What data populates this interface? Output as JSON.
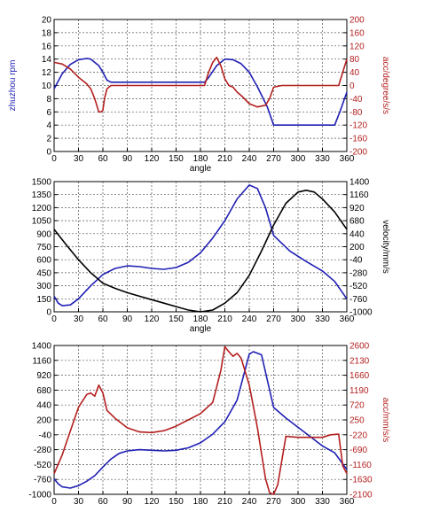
{
  "colors": {
    "blue": "#1f1fb4",
    "red": "#b41f1f",
    "black": "#000000",
    "axis": "#000000",
    "grid": "#555555"
  },
  "chart_data": [
    {
      "type": "line",
      "xlabel": "angle",
      "ylabel": "zhuzhou rpm",
      "ylabel_right": "acc/degree/s/s",
      "xlim": [
        0,
        360
      ],
      "ylim": [
        0,
        20
      ],
      "ylim_right": [
        -200,
        200
      ],
      "xticks": [
        "0",
        "30",
        "60",
        "90",
        "120",
        "150",
        "180",
        "210",
        "240",
        "270",
        "300",
        "330",
        "360"
      ],
      "yticks": [
        "0",
        "2",
        "4",
        "6",
        "8",
        "10",
        "12",
        "14",
        "16",
        "18",
        "20"
      ],
      "yticks_right": [
        "-200",
        "-160",
        "-120",
        "-80",
        "-40",
        "0",
        "40",
        "80",
        "120",
        "160",
        "200"
      ],
      "grid": true,
      "series": [
        {
          "color": "blue",
          "axis": "left",
          "x": [
            0,
            10,
            20,
            30,
            40,
            45,
            55,
            60,
            65,
            70,
            180,
            185,
            190,
            200,
            210,
            220,
            230,
            240,
            250,
            262,
            270,
            285,
            300,
            330,
            345,
            352,
            360
          ],
          "y": [
            9.5,
            11.8,
            13.2,
            13.9,
            14.1,
            14.0,
            13.0,
            12.0,
            10.8,
            10.5,
            10.5,
            10.5,
            11.2,
            13.0,
            14.0,
            13.9,
            13.3,
            12.0,
            9.8,
            6.8,
            4.0,
            4.0,
            4.0,
            4.0,
            4.0,
            6.2,
            9.0
          ]
        },
        {
          "color": "red",
          "axis": "right",
          "x": [
            0,
            10,
            20,
            30,
            40,
            45,
            50,
            55,
            58,
            60,
            62,
            65,
            70,
            185,
            190,
            195,
            200,
            205,
            210,
            215,
            220,
            225,
            230,
            240,
            250,
            260,
            265,
            270,
            280,
            350,
            355,
            360
          ],
          "y": [
            70,
            65,
            50,
            25,
            5,
            -10,
            -40,
            -80,
            -80,
            -75,
            -40,
            -10,
            0,
            0,
            40,
            70,
            85,
            60,
            20,
            0,
            -5,
            -20,
            -30,
            -55,
            -65,
            -60,
            -40,
            -5,
            0,
            0,
            40,
            80
          ]
        }
      ]
    },
    {
      "type": "line",
      "xlabel": "angle",
      "ylabel": "",
      "ylabel_right": "velocity/mm/s",
      "xlim": [
        0,
        360
      ],
      "ylim": [
        0,
        1500
      ],
      "ylim_right": [
        -1000,
        1400
      ],
      "xticks": [
        "0",
        "30",
        "60",
        "90",
        "120",
        "150",
        "180",
        "210",
        "240",
        "270",
        "300",
        "330",
        "360"
      ],
      "yticks": [
        "0",
        "150",
        "300",
        "450",
        "600",
        "750",
        "900",
        "1050",
        "1200",
        "1350",
        "1500"
      ],
      "yticks_right": [
        "-1000",
        "-760",
        "-520",
        "-280",
        "-40",
        "200",
        "440",
        "680",
        "920",
        "1160",
        "1400"
      ],
      "grid": true,
      "series": [
        {
          "color": "blue",
          "axis": "left",
          "x": [
            0,
            5,
            10,
            20,
            30,
            45,
            60,
            75,
            90,
            105,
            120,
            135,
            150,
            165,
            180,
            195,
            210,
            225,
            240,
            250,
            260,
            270,
            290,
            310,
            330,
            345,
            360
          ],
          "y": [
            180,
            100,
            70,
            80,
            150,
            300,
            430,
            500,
            530,
            520,
            500,
            490,
            510,
            570,
            680,
            850,
            1050,
            1300,
            1460,
            1420,
            1200,
            880,
            700,
            580,
            470,
            350,
            150
          ]
        },
        {
          "color": "black",
          "axis": "left",
          "x": [
            0,
            15,
            30,
            45,
            60,
            75,
            90,
            105,
            120,
            135,
            150,
            165,
            180,
            195,
            210,
            225,
            240,
            255,
            270,
            285,
            300,
            310,
            320,
            330,
            345,
            360
          ],
          "y": [
            950,
            770,
            600,
            450,
            330,
            270,
            220,
            180,
            140,
            100,
            60,
            20,
            0,
            20,
            100,
            220,
            420,
            700,
            1000,
            1250,
            1380,
            1400,
            1380,
            1300,
            1150,
            950
          ]
        }
      ]
    },
    {
      "type": "line",
      "xlabel": "",
      "ylabel": "",
      "ylabel_right": "acc/mm/s/s",
      "xlim": [
        0,
        360
      ],
      "ylim": [
        -1000,
        1400
      ],
      "ylim_right": [
        -2100,
        2600
      ],
      "xticks": [
        "0",
        "30",
        "60",
        "90",
        "120",
        "150",
        "180",
        "210",
        "240",
        "270",
        "300",
        "330",
        "360"
      ],
      "yticks": [
        "-1000",
        "-760",
        "-520",
        "-280",
        "-40",
        "200",
        "440",
        "680",
        "920",
        "1160",
        "1400"
      ],
      "yticks_right": [
        "-2100",
        "-1630",
        "-1160",
        "-690",
        "-220",
        "250",
        "720",
        "1190",
        "1660",
        "2130",
        "2600"
      ],
      "grid": true,
      "series": [
        {
          "color": "blue",
          "axis": "left",
          "x": [
            0,
            5,
            10,
            20,
            30,
            40,
            50,
            60,
            70,
            80,
            90,
            105,
            120,
            135,
            150,
            165,
            180,
            195,
            210,
            225,
            240,
            245,
            255,
            270,
            285,
            300,
            315,
            330,
            345,
            360
          ],
          "y": [
            -750,
            -830,
            -880,
            -900,
            -860,
            -790,
            -700,
            -560,
            -430,
            -340,
            -300,
            -280,
            -290,
            -300,
            -290,
            -250,
            -170,
            -30,
            170,
            520,
            1260,
            1300,
            1250,
            400,
            230,
            80,
            -70,
            -220,
            -330,
            -600
          ]
        },
        {
          "color": "red",
          "axis": "right",
          "x": [
            0,
            10,
            20,
            30,
            40,
            45,
            50,
            55,
            60,
            65,
            75,
            90,
            105,
            120,
            135,
            150,
            165,
            180,
            195,
            205,
            210,
            215,
            220,
            225,
            230,
            240,
            250,
            260,
            265,
            270,
            275,
            285,
            300,
            330,
            340,
            350,
            355,
            360
          ],
          "y": [
            -1450,
            -850,
            -100,
            650,
            1050,
            1100,
            1000,
            1350,
            1100,
            550,
            300,
            0,
            -130,
            -150,
            -90,
            50,
            250,
            450,
            800,
            1800,
            2560,
            2400,
            2260,
            2350,
            2200,
            1350,
            0,
            -1600,
            -2050,
            -2100,
            -1800,
            -270,
            -300,
            -300,
            -220,
            -200,
            -1200,
            -1450
          ]
        }
      ]
    }
  ]
}
